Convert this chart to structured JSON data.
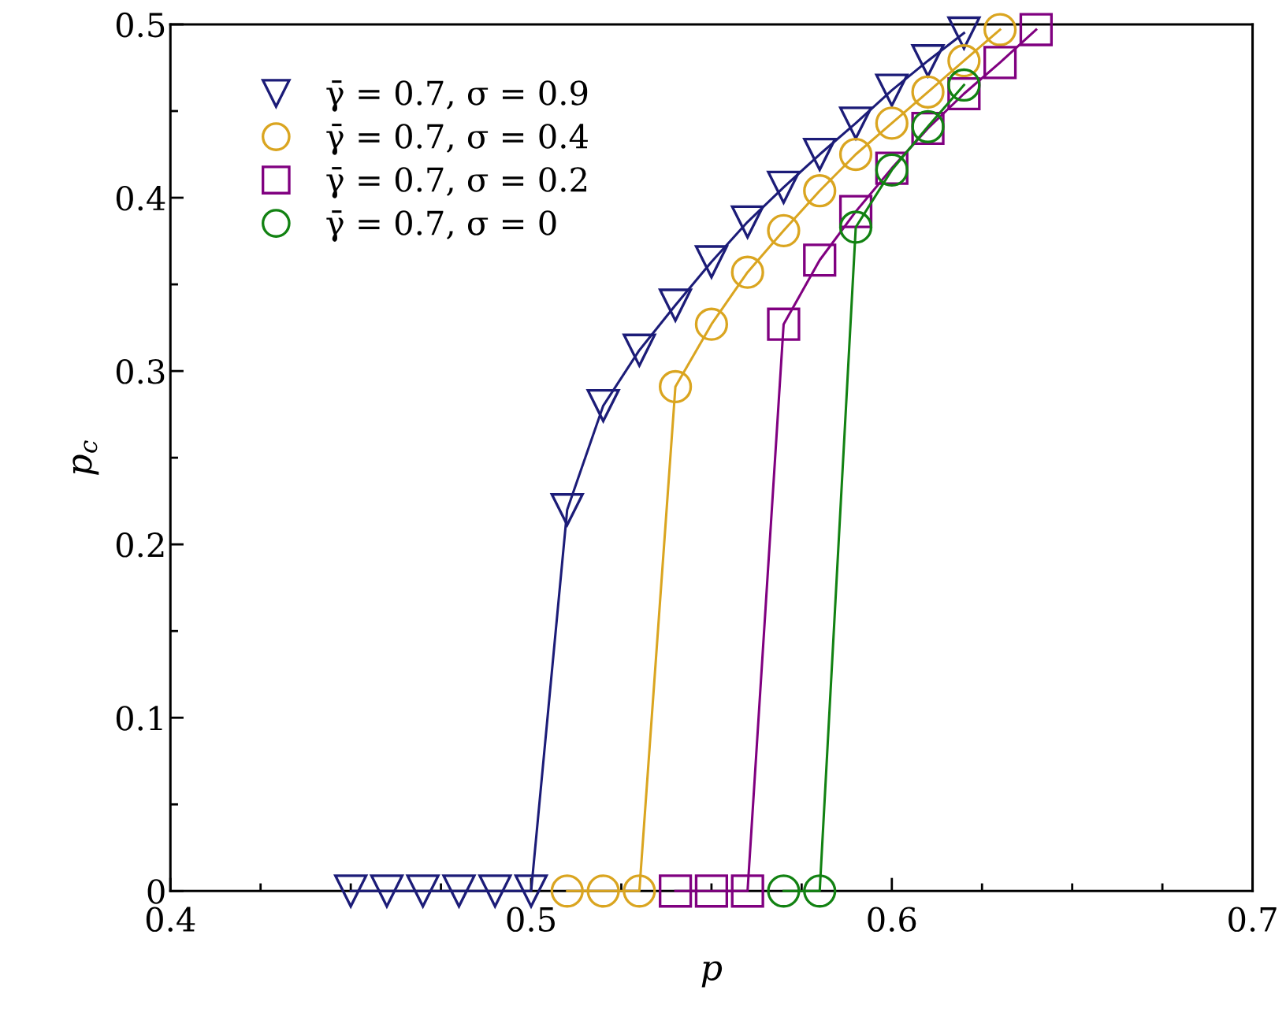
{
  "chart_data": {
    "type": "line",
    "xlabel": "p",
    "ylabel": "p$_{c}$",
    "xlim": [
      0.4,
      0.7
    ],
    "ylim": [
      0,
      0.5
    ],
    "xticks": [
      0.4,
      0.5,
      0.6,
      0.7
    ],
    "yticks": [
      0,
      0.1,
      0.2,
      0.3,
      0.4,
      0.5
    ],
    "grid": false,
    "legend": "top left",
    "line_style": "solid",
    "series": [
      {
        "name": "γ̄ = 0.7, σ = 0.9",
        "color": "#1c1c78",
        "marker": "triangle",
        "x": [
          0.45,
          0.46,
          0.47,
          0.48,
          0.49,
          0.5,
          0.51,
          0.52,
          0.53,
          0.54,
          0.55,
          0.56,
          0.57,
          0.58,
          0.59,
          0.6,
          0.61,
          0.62
        ],
        "values": [
          0,
          0,
          0,
          0,
          0,
          0,
          0.22,
          0.28,
          0.312,
          0.338,
          0.363,
          0.386,
          0.406,
          0.425,
          0.443,
          0.462,
          0.479,
          0.495
        ]
      },
      {
        "name": "γ̄ = 0.7, σ = 0.4",
        "color": "#daa520",
        "marker": "circle",
        "x": [
          0.51,
          0.52,
          0.53,
          0.54,
          0.55,
          0.56,
          0.57,
          0.58,
          0.59,
          0.6,
          0.61,
          0.62,
          0.63
        ],
        "values": [
          0,
          0,
          0,
          0.291,
          0.327,
          0.357,
          0.381,
          0.404,
          0.425,
          0.443,
          0.461,
          0.479,
          0.497
        ]
      },
      {
        "name": "γ̄ = 0.7, σ = 0.2",
        "color": "#800080",
        "marker": "square",
        "x": [
          0.54,
          0.55,
          0.56,
          0.57,
          0.58,
          0.59,
          0.6,
          0.61,
          0.62,
          0.63,
          0.64
        ],
        "values": [
          0,
          0,
          0,
          0.327,
          0.364,
          0.392,
          0.417,
          0.44,
          0.46,
          0.478,
          0.497
        ]
      },
      {
        "name": "γ̄ = 0.7, σ = 0",
        "color": "#128212",
        "marker": "circle",
        "x": [
          0.57,
          0.58,
          0.59,
          0.6,
          0.61,
          0.62
        ],
        "values": [
          0,
          0,
          0.383,
          0.416,
          0.441,
          0.465
        ]
      }
    ]
  }
}
